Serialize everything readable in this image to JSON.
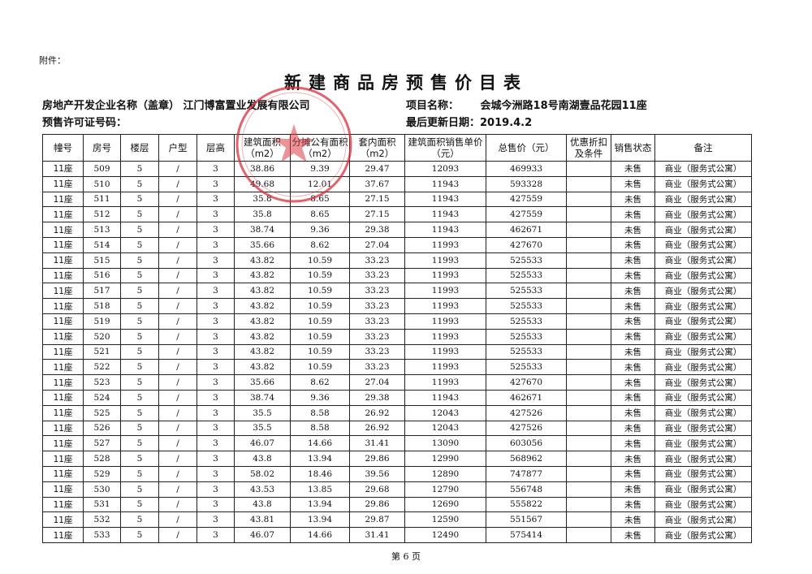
{
  "attachment_label": "附件：",
  "title": "新建商品房预售价目表",
  "developer_label": "房地产开发企业名称（盖章）",
  "developer_name": "江门博富置业发展有限公司",
  "permit_label": "预售许可证号码：",
  "project_label": "项目名称：",
  "project_name": "会城今洲路18号南湖壹品花园11座",
  "updated_label": "最后更新日期：",
  "updated_date": "2019.4.2",
  "stamp_color": "#d9303a",
  "columns": [
    "幢号",
    "房号",
    "楼层",
    "户型",
    "层高",
    "建筑面积（m2）",
    "分摊公有面积（m2）",
    "套内面积（m2）",
    "建筑面积销售单价（元）",
    "总售价（元）",
    "优惠折扣及条件",
    "销售状态",
    "备注"
  ],
  "rows": [
    [
      "11座",
      "509",
      "5",
      "/",
      "3",
      "38.86",
      "9.39",
      "29.47",
      "12093",
      "469933",
      "",
      "未售",
      "商业（服务式公寓）"
    ],
    [
      "11座",
      "510",
      "5",
      "/",
      "3",
      "49.68",
      "12.01",
      "37.67",
      "11943",
      "593328",
      "",
      "未售",
      "商业（服务式公寓）"
    ],
    [
      "11座",
      "511",
      "5",
      "/",
      "3",
      "35.8",
      "8.65",
      "27.15",
      "11943",
      "427559",
      "",
      "未售",
      "商业（服务式公寓）"
    ],
    [
      "11座",
      "512",
      "5",
      "/",
      "3",
      "35.8",
      "8.65",
      "27.15",
      "11943",
      "427559",
      "",
      "未售",
      "商业（服务式公寓）"
    ],
    [
      "11座",
      "513",
      "5",
      "/",
      "3",
      "38.74",
      "9.36",
      "29.38",
      "11943",
      "462671",
      "",
      "未售",
      "商业（服务式公寓）"
    ],
    [
      "11座",
      "514",
      "5",
      "/",
      "3",
      "35.66",
      "8.62",
      "27.04",
      "11993",
      "427670",
      "",
      "未售",
      "商业（服务式公寓）"
    ],
    [
      "11座",
      "515",
      "5",
      "/",
      "3",
      "43.82",
      "10.59",
      "33.23",
      "11993",
      "525533",
      "",
      "未售",
      "商业（服务式公寓）"
    ],
    [
      "11座",
      "516",
      "5",
      "/",
      "3",
      "43.82",
      "10.59",
      "33.23",
      "11993",
      "525533",
      "",
      "未售",
      "商业（服务式公寓）"
    ],
    [
      "11座",
      "517",
      "5",
      "/",
      "3",
      "43.82",
      "10.59",
      "33.23",
      "11993",
      "525533",
      "",
      "未售",
      "商业（服务式公寓）"
    ],
    [
      "11座",
      "518",
      "5",
      "/",
      "3",
      "43.82",
      "10.59",
      "33.23",
      "11993",
      "525533",
      "",
      "未售",
      "商业（服务式公寓）"
    ],
    [
      "11座",
      "519",
      "5",
      "/",
      "3",
      "43.82",
      "10.59",
      "33.23",
      "11993",
      "525533",
      "",
      "未售",
      "商业（服务式公寓）"
    ],
    [
      "11座",
      "520",
      "5",
      "/",
      "3",
      "43.82",
      "10.59",
      "33.23",
      "11993",
      "525533",
      "",
      "未售",
      "商业（服务式公寓）"
    ],
    [
      "11座",
      "521",
      "5",
      "/",
      "3",
      "43.82",
      "10.59",
      "33.23",
      "11993",
      "525533",
      "",
      "未售",
      "商业（服务式公寓）"
    ],
    [
      "11座",
      "522",
      "5",
      "/",
      "3",
      "43.82",
      "10.59",
      "33.23",
      "11993",
      "525533",
      "",
      "未售",
      "商业（服务式公寓）"
    ],
    [
      "11座",
      "523",
      "5",
      "/",
      "3",
      "35.66",
      "8.62",
      "27.04",
      "11993",
      "427670",
      "",
      "未售",
      "商业（服务式公寓）"
    ],
    [
      "11座",
      "524",
      "5",
      "/",
      "3",
      "38.74",
      "9.36",
      "29.38",
      "11943",
      "462671",
      "",
      "未售",
      "商业（服务式公寓）"
    ],
    [
      "11座",
      "525",
      "5",
      "/",
      "3",
      "35.5",
      "8.58",
      "26.92",
      "12043",
      "427526",
      "",
      "未售",
      "商业（服务式公寓）"
    ],
    [
      "11座",
      "526",
      "5",
      "/",
      "3",
      "35.5",
      "8.58",
      "26.92",
      "12043",
      "427526",
      "",
      "未售",
      "商业（服务式公寓）"
    ],
    [
      "11座",
      "527",
      "5",
      "/",
      "3",
      "46.07",
      "14.66",
      "31.41",
      "13090",
      "603056",
      "",
      "未售",
      "商业（服务式公寓）"
    ],
    [
      "11座",
      "528",
      "5",
      "/",
      "3",
      "43.8",
      "13.94",
      "29.86",
      "12990",
      "568962",
      "",
      "未售",
      "商业（服务式公寓）"
    ],
    [
      "11座",
      "529",
      "5",
      "/",
      "3",
      "58.02",
      "18.46",
      "39.56",
      "12890",
      "747877",
      "",
      "未售",
      "商业（服务式公寓）"
    ],
    [
      "11座",
      "530",
      "5",
      "/",
      "3",
      "43.53",
      "13.85",
      "29.68",
      "12790",
      "556748",
      "",
      "未售",
      "商业（服务式公寓）"
    ],
    [
      "11座",
      "531",
      "5",
      "/",
      "3",
      "43.8",
      "13.94",
      "29.86",
      "12690",
      "555822",
      "",
      "未售",
      "商业（服务式公寓）"
    ],
    [
      "11座",
      "532",
      "5",
      "/",
      "3",
      "43.81",
      "13.94",
      "29.87",
      "12590",
      "551567",
      "",
      "未售",
      "商业（服务式公寓）"
    ],
    [
      "11座",
      "533",
      "5",
      "/",
      "3",
      "46.07",
      "14.66",
      "31.41",
      "12490",
      "575414",
      "",
      "未售",
      "商业（服务式公寓）"
    ]
  ],
  "footer": "第 6 页"
}
